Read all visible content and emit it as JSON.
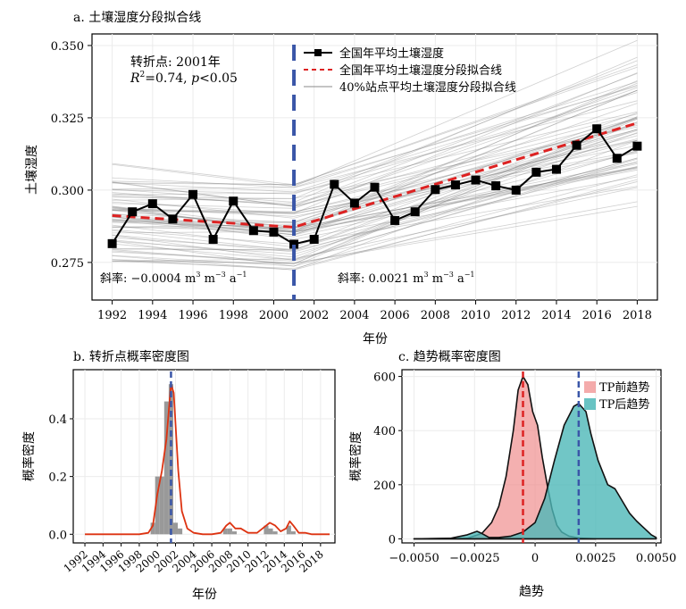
{
  "chart_data": [
    {
      "type": "line",
      "panel": "a",
      "title": "a. 土壤湿度分段拟合线",
      "xlabel": "年份",
      "ylabel": "土壤湿度",
      "xlim": [
        1991,
        2019
      ],
      "ylim": [
        0.262,
        0.354
      ],
      "x_ticks": [
        1992,
        1994,
        1996,
        1998,
        2000,
        2002,
        2004,
        2006,
        2008,
        2010,
        2012,
        2014,
        2016,
        2018
      ],
      "y_ticks": [
        0.275,
        0.3,
        0.325,
        0.35
      ],
      "y_tick_labels": [
        "0.275",
        "0.300",
        "0.325",
        "0.350"
      ],
      "grid": true,
      "legend_position": "top-center",
      "series": [
        {
          "name": "全国年平均土壤湿度",
          "color": "#000000",
          "style": "line-square-marker",
          "x": [
            1992,
            1993,
            1994,
            1995,
            1996,
            1997,
            1998,
            1999,
            2000,
            2001,
            2002,
            2003,
            2004,
            2005,
            2006,
            2007,
            2008,
            2009,
            2010,
            2011,
            2012,
            2013,
            2014,
            2015,
            2016,
            2017,
            2018
          ],
          "y": [
            0.2815,
            0.2925,
            0.2953,
            0.29,
            0.2985,
            0.283,
            0.2962,
            0.286,
            0.2855,
            0.2813,
            0.283,
            0.302,
            0.2955,
            0.301,
            0.2895,
            0.2925,
            0.3002,
            0.3018,
            0.3035,
            0.3015,
            0.3,
            0.3062,
            0.3072,
            0.3155,
            0.3212,
            0.311,
            0.3152
          ]
        },
        {
          "name": "全国年平均土壤湿度分段拟合线",
          "color": "#dd2222",
          "style": "dashed",
          "x": [
            1992,
            2001,
            2018
          ],
          "y": [
            0.2912,
            0.2872,
            0.3232
          ]
        },
        {
          "name": "40%站点平均土壤湿度分段拟合线",
          "color": "#555555",
          "style": "thin-lines-ensemble"
        }
      ],
      "vline": {
        "x": 2001,
        "color": "#3a56a8",
        "style": "dashed"
      },
      "annotations": {
        "turning_point": "转折点: 2001年",
        "r2_prefix": "R",
        "r2_rest": "=0.74, ",
        "p_label": "p",
        "p_rest": "<0.05",
        "slope_left_text": "斜率: −0.0004 m",
        "slope_right_text": "斜率: 0.0021 m",
        "unit_m": " m",
        "unit_a": " a",
        "sup3": "3",
        "sup_neg3": "−3",
        "sup_neg1": "−1"
      }
    },
    {
      "type": "bar",
      "panel": "b",
      "title": "b. 转折点概率密度图",
      "xlabel": "年份",
      "ylabel": "概率密度",
      "xlim": [
        1992,
        2019
      ],
      "ylim": [
        -0.03,
        0.57
      ],
      "x_ticks": [
        1992,
        1994,
        1996,
        1998,
        2000,
        2002,
        2004,
        2006,
        2008,
        2010,
        2012,
        2014,
        2016,
        2018
      ],
      "y_ticks": [
        0.0,
        0.2,
        0.4
      ],
      "y_tick_labels": [
        "0.0",
        "0.2",
        "0.4"
      ],
      "grid": true,
      "bars": {
        "color": "#999999",
        "x": [
          1999.5,
          2000,
          2000.5,
          2001,
          2001.5,
          2002,
          2002.5,
          2007.5,
          2008,
          2008.5,
          2012,
          2012.5,
          2013,
          2014.5,
          2015
        ],
        "values": [
          0.04,
          0.2,
          0.2,
          0.46,
          0.52,
          0.04,
          0.02,
          0.02,
          0.02,
          0.01,
          0.03,
          0.02,
          0.01,
          0.03,
          0.01
        ]
      },
      "density_curve": {
        "color": "#dd3311",
        "x": [
          1992,
          1998,
          1999,
          1999.5,
          2000,
          2000.5,
          2001,
          2001.5,
          2001.8,
          2002.3,
          2002.7,
          2003.3,
          2004,
          2005,
          2006,
          2007,
          2007.6,
          2008,
          2008.6,
          2009.2,
          2010,
          2011,
          2011.8,
          2012.4,
          2013,
          2013.6,
          2014.2,
          2014.6,
          2015,
          2015.6,
          2016.3,
          2017,
          2018,
          2019
        ],
        "y": [
          0.0,
          0.0,
          0.005,
          0.03,
          0.14,
          0.22,
          0.33,
          0.52,
          0.49,
          0.22,
          0.08,
          0.02,
          0.005,
          0.0,
          0.0,
          0.005,
          0.03,
          0.04,
          0.02,
          0.02,
          0.005,
          0.005,
          0.025,
          0.04,
          0.03,
          0.01,
          0.02,
          0.045,
          0.03,
          0.005,
          0.005,
          0.0,
          0.0,
          0.0
        ]
      },
      "vline": {
        "x": 2001.5,
        "color": "#3a56a8",
        "style": "dashed"
      }
    },
    {
      "type": "area",
      "panel": "c",
      "title": "c. 趋势概率密度图",
      "xlabel": "趋势",
      "ylabel": "概率密度",
      "xlim": [
        -0.0055,
        0.0052
      ],
      "ylim": [
        -15,
        625
      ],
      "x_ticks": [
        -0.005,
        -0.0025,
        0.0,
        0.0025,
        0.005
      ],
      "x_tick_labels": [
        "−0.0050",
        "−0.0025",
        "0",
        "0.0025",
        "0.0050"
      ],
      "y_ticks": [
        0,
        200,
        400,
        600
      ],
      "y_tick_labels": [
        "0",
        "200",
        "400",
        "600"
      ],
      "grid": true,
      "legend_position": "top-right",
      "series": [
        {
          "name": "TP前趋势",
          "color": "#f08f8f",
          "x": [
            -0.005,
            -0.0028,
            -0.0022,
            -0.0018,
            -0.0015,
            -0.0012,
            -0.0009,
            -0.0007,
            -0.0005,
            -0.0003,
            -0.0001,
            0.0001,
            0.0003,
            0.0005,
            0.0007,
            0.0009,
            0.0011,
            0.0014,
            0.0018,
            0.0025
          ],
          "y": [
            0,
            2,
            20,
            60,
            120,
            230,
            400,
            550,
            600,
            570,
            470,
            420,
            300,
            200,
            110,
            50,
            25,
            10,
            3,
            0
          ]
        },
        {
          "name": "TP后趋势",
          "color": "#4db8b8",
          "x": [
            -0.005,
            -0.0035,
            -0.0028,
            -0.0024,
            -0.0022,
            -0.0019,
            -0.0015,
            -0.001,
            -0.0005,
            0.0,
            0.0004,
            0.0008,
            0.0012,
            0.0016,
            0.0018,
            0.0021,
            0.0023,
            0.0026,
            0.003,
            0.0033,
            0.0036,
            0.0039,
            0.0042,
            0.0045,
            0.0048,
            0.005
          ],
          "y": [
            0,
            2,
            15,
            28,
            20,
            5,
            5,
            10,
            25,
            60,
            150,
            290,
            420,
            490,
            500,
            470,
            390,
            290,
            200,
            185,
            140,
            95,
            65,
            40,
            15,
            5
          ]
        }
      ],
      "vlines": [
        {
          "x": -0.0005,
          "color": "#dd2222",
          "style": "dashed"
        },
        {
          "x": 0.0018,
          "color": "#3a56a8",
          "style": "dashed"
        }
      ]
    }
  ]
}
